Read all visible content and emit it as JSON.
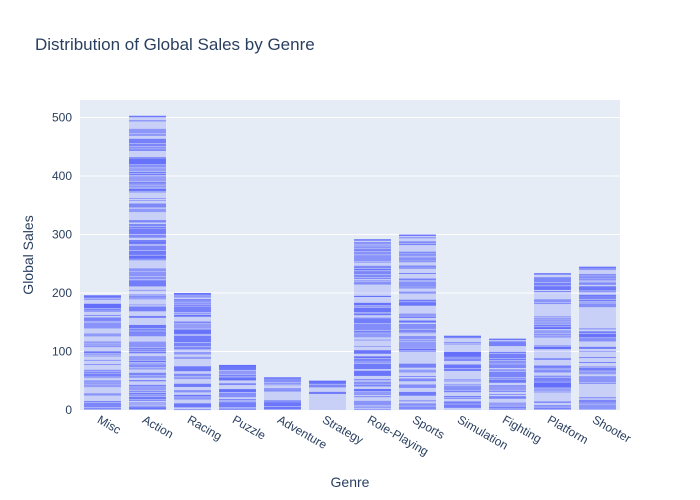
{
  "chart_data": {
    "type": "bar",
    "title": "Distribution of Global Sales by Genre",
    "xlabel": "Genre",
    "ylabel": "Global Sales",
    "categories": [
      "Misc",
      "Action",
      "Racing",
      "Puzzle",
      "Adventure",
      "Strategy",
      "Role-Playing",
      "Sports",
      "Simulation",
      "Fighting",
      "Platform",
      "Shooter"
    ],
    "values": [
      196,
      503,
      200,
      77,
      56,
      50,
      292,
      300,
      127,
      122,
      234,
      245
    ],
    "ylim": [
      0,
      530
    ],
    "yticks": [
      0,
      100,
      200,
      300,
      400,
      500
    ],
    "grid": true,
    "bar_style": "stacked individual game records (segmented)",
    "colors": {
      "bar": "#636efa",
      "plot_bg": "#e5ecf6",
      "grid": "#ffffff",
      "text": "#2a3f5f"
    }
  }
}
